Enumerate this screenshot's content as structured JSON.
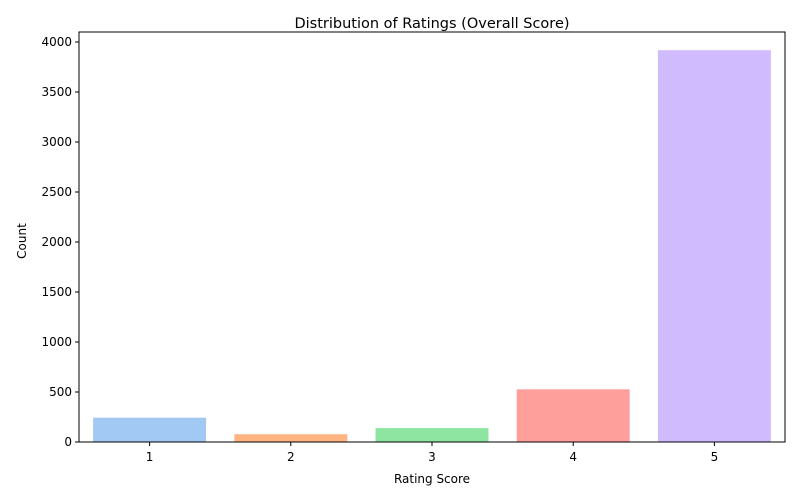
{
  "chart_data": {
    "type": "bar",
    "title": "Distribution of Ratings (Overall Score)",
    "xlabel": "Rating Score",
    "ylabel": "Count",
    "categories": [
      "1",
      "2",
      "3",
      "4",
      "5"
    ],
    "values": [
      243,
      78,
      139,
      527,
      3918
    ],
    "colors": [
      "#a1c9f4",
      "#ffb482",
      "#8de5a1",
      "#ff9f9b",
      "#d0bbff"
    ],
    "ylim": [
      0,
      4100
    ],
    "yticks": [
      0,
      500,
      1000,
      1500,
      2000,
      2500,
      3000,
      3500,
      4000
    ],
    "grid": false,
    "legend": false
  }
}
